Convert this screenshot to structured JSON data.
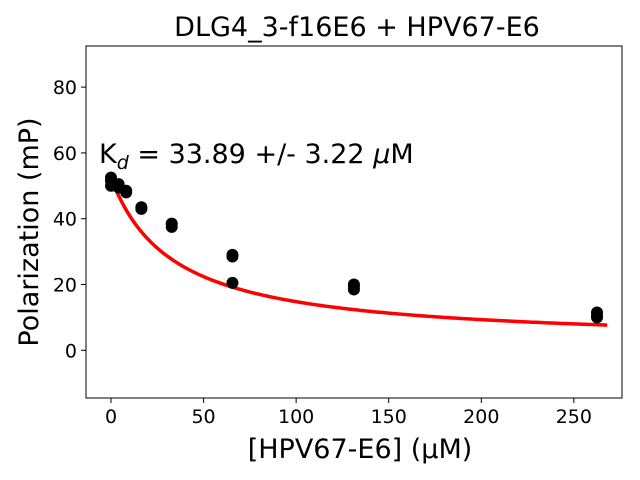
{
  "chart_data": {
    "type": "scatter",
    "title": "DLG4_3-f16E6 + HPV67-E6",
    "xlabel": "[HPV67-E6] (μM)",
    "ylabel": "Polarization (mP)",
    "xlim": [
      -13.5,
      276
    ],
    "ylim": [
      -14.5,
      92.5
    ],
    "xticks": [
      0,
      50,
      100,
      150,
      200,
      250
    ],
    "yticks": [
      0,
      20,
      40,
      60,
      80
    ],
    "grid": false,
    "annotation": {
      "text": "K",
      "subscript": "d",
      "rest": " = 33.89 +/- 3.22 ",
      "mu": "μ",
      "unit": "M"
    },
    "series": [
      {
        "kind": "scatter",
        "color": "#000000",
        "x": [
          0,
          0,
          0,
          4.1,
          4.1,
          8.2,
          8.2,
          16.4,
          16.4,
          32.8,
          32.8,
          65.6,
          65.6,
          65.6,
          131.2,
          131.2,
          131.2,
          262.5,
          262.5,
          262.5
        ],
        "y": [
          50,
          51.5,
          52.5,
          49.5,
          50.5,
          48,
          48.5,
          43,
          43.5,
          37.5,
          38.5,
          28.5,
          29,
          20.5,
          18.5,
          19.5,
          20,
          10,
          10.5,
          11.5
        ]
      },
      {
        "kind": "fit",
        "color": "#ff0000",
        "kd": 33.89,
        "top": 52.5,
        "bottom": 2,
        "x_range": [
          0,
          268
        ]
      }
    ]
  }
}
